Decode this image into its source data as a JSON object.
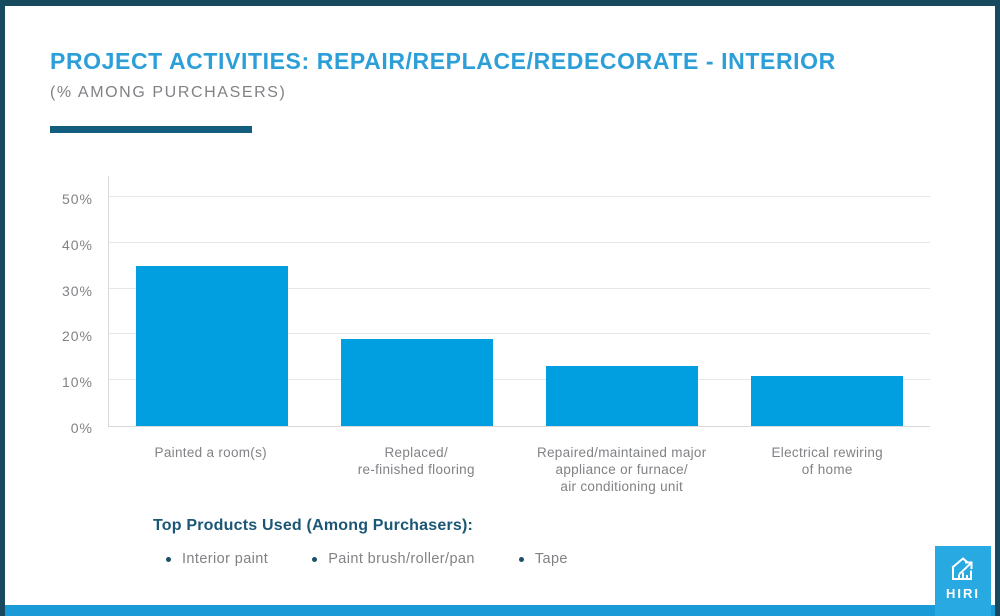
{
  "header": {
    "title": "PROJECT ACTIVITIES: REPAIR/REPLACE/REDECORATE - INTERIOR",
    "subtitle": "(% AMONG PURCHASERS)"
  },
  "chart_data": {
    "type": "bar",
    "categories": [
      "Painted a room(s)",
      "Replaced/\nre-finished flooring",
      "Repaired/maintained major\nappliance or furnace/\nair conditioning unit",
      "Electrical rewiring\nof home"
    ],
    "values": [
      35,
      19,
      13,
      11
    ],
    "title": "PROJECT ACTIVITIES: REPAIR/REPLACE/REDECORATE - INTERIOR",
    "subtitle": "(% AMONG PURCHASERS)",
    "xlabel": "",
    "ylabel": "",
    "ylim": [
      0,
      50
    ],
    "yticks": [
      0,
      10,
      20,
      30,
      40,
      50
    ],
    "ytick_suffix": "%",
    "grid": true,
    "legend_position": "none",
    "bar_color": "#029fe0"
  },
  "footer": {
    "products_heading": "Top Products Used (Among Purchasers):",
    "products": [
      "Interior paint",
      "Paint brush/roller/pan",
      "Tape"
    ]
  },
  "logo": {
    "text": "HIRI"
  },
  "colors": {
    "title": "#2d9fd8",
    "subtitle": "#808285",
    "accent_rule": "#135e7e",
    "bar": "#029fe0",
    "border": "#174a5e",
    "bottom_strip": "#1a9bd7",
    "logo_bg": "#29a9e1",
    "axis_text": "#808285",
    "gridline": "#e7e7e7",
    "products_heading": "#1b5775"
  }
}
